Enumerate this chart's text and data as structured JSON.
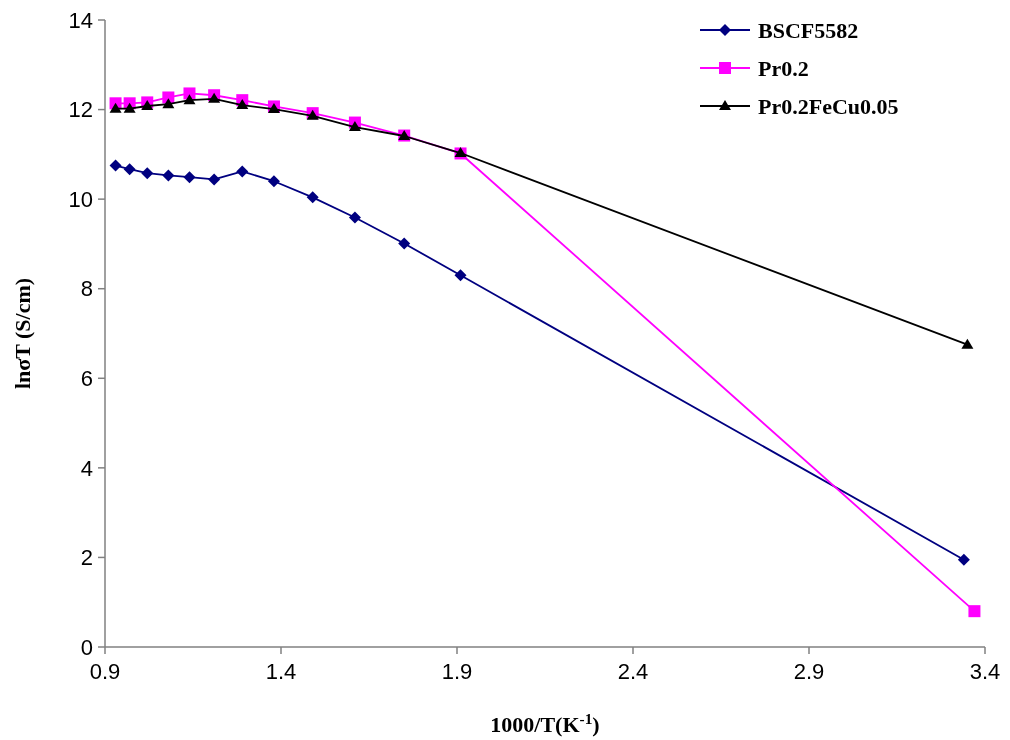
{
  "chart_data": {
    "type": "line",
    "xlabel": "1000/T(K$^{-1}$)",
    "ylabel": "lnσT (S/cm)",
    "xlim": [
      0.9,
      3.4
    ],
    "xticks": [
      0.9,
      1.4,
      1.9,
      2.4,
      2.9,
      3.4
    ],
    "ylim": [
      0,
      14
    ],
    "yticks": [
      0,
      2,
      4,
      6,
      8,
      10,
      12,
      14
    ],
    "grid": false,
    "legend": "top right",
    "line_style": "solid",
    "series": [
      {
        "name": "BSCF5582",
        "color": "#000080",
        "marker": "diamond",
        "x": [
          0.93,
          0.97,
          1.02,
          1.08,
          1.14,
          1.21,
          1.29,
          1.38,
          1.49,
          1.61,
          1.75,
          1.91,
          3.34
        ],
        "values": [
          10.75,
          10.67,
          10.58,
          10.53,
          10.49,
          10.44,
          10.62,
          10.4,
          10.04,
          9.59,
          9.01,
          8.3,
          1.95
        ]
      },
      {
        "name": "Pr0.2",
        "color": "#ff00ff",
        "marker": "square",
        "x": [
          0.93,
          0.97,
          1.02,
          1.08,
          1.14,
          1.21,
          1.29,
          1.38,
          1.49,
          1.61,
          1.75,
          1.91,
          3.37
        ],
        "values": [
          12.14,
          12.14,
          12.16,
          12.27,
          12.36,
          12.32,
          12.21,
          12.07,
          11.92,
          11.71,
          11.42,
          11.02,
          0.8
        ]
      },
      {
        "name": "Pr0.2FeCu0.05",
        "color": "#000000",
        "marker": "triangle",
        "x": [
          0.93,
          0.97,
          1.02,
          1.08,
          1.14,
          1.21,
          1.29,
          1.38,
          1.49,
          1.61,
          1.75,
          1.91,
          3.35
        ],
        "values": [
          12.02,
          12.02,
          12.08,
          12.12,
          12.21,
          12.24,
          12.1,
          12.01,
          11.86,
          11.61,
          11.41,
          11.03,
          6.75
        ]
      }
    ]
  }
}
